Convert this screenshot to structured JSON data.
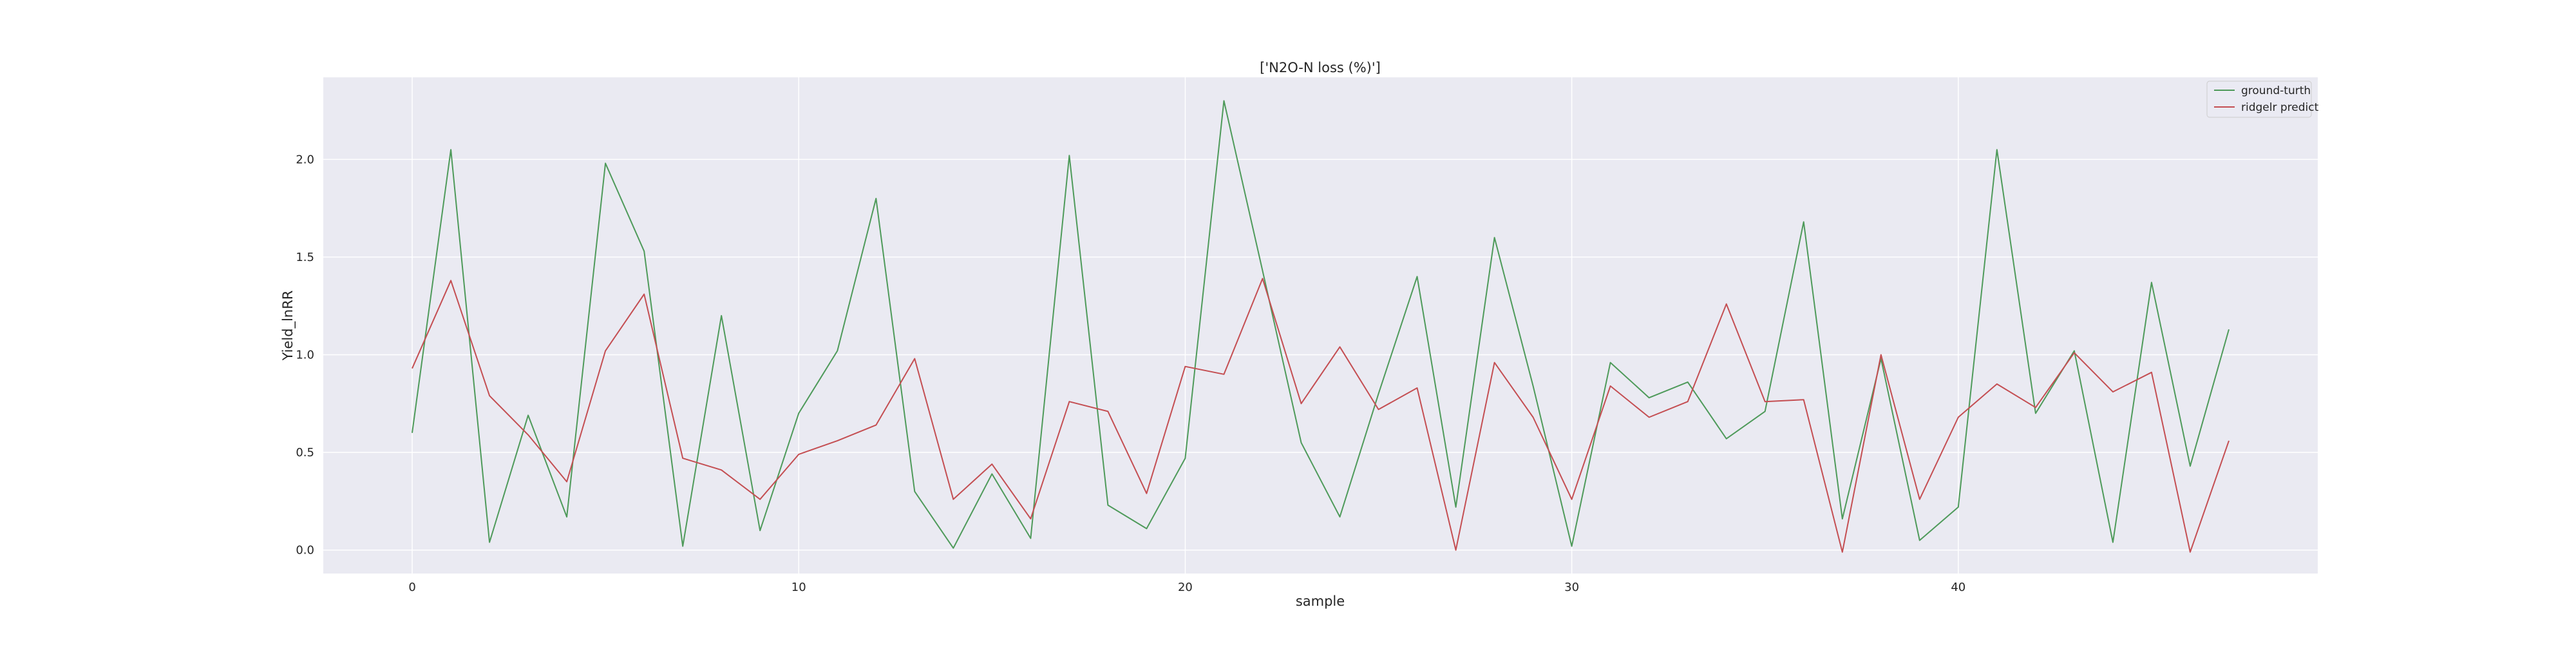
{
  "chart_data": {
    "type": "line",
    "title": "['N2O-N loss (%)']",
    "xlabel": "sample",
    "ylabel": "Yield_lnRR",
    "xlim": [
      -2.3,
      49.3
    ],
    "ylim": [
      -0.12,
      2.42
    ],
    "xticks": [
      0,
      10,
      20,
      30,
      40
    ],
    "yticks": [
      0.0,
      0.5,
      1.0,
      1.5,
      2.0
    ],
    "xtick_labels": [
      "0",
      "10",
      "20",
      "30",
      "40"
    ],
    "ytick_labels": [
      "0.0",
      "0.5",
      "1.0",
      "1.5",
      "2.0"
    ],
    "grid": true,
    "legend_position": "top-right",
    "x": [
      0,
      1,
      2,
      3,
      4,
      5,
      6,
      7,
      8,
      9,
      10,
      11,
      12,
      13,
      14,
      15,
      16,
      17,
      18,
      19,
      20,
      21,
      22,
      23,
      24,
      25,
      26,
      27,
      28,
      29,
      30,
      31,
      32,
      33,
      34,
      35,
      36,
      37,
      38,
      39,
      40,
      41,
      42,
      43,
      44,
      45,
      46,
      47
    ],
    "series": [
      {
        "name": "ground-turth",
        "color": "#4e9a5a",
        "values": [
          0.6,
          2.05,
          0.04,
          0.69,
          0.17,
          1.98,
          1.53,
          0.02,
          1.2,
          0.1,
          0.7,
          1.02,
          1.8,
          0.3,
          0.01,
          0.39,
          0.06,
          2.02,
          0.23,
          0.11,
          0.47,
          2.3,
          1.43,
          0.55,
          0.17,
          0.8,
          1.4,
          0.22,
          1.6,
          0.84,
          0.02,
          0.96,
          0.78,
          0.86,
          0.57,
          0.71,
          1.68,
          0.16,
          0.98,
          0.05,
          0.22,
          2.05,
          0.7,
          1.02,
          0.04,
          1.37,
          0.43,
          1.13
        ]
      },
      {
        "name": "ridgelr predict",
        "color": "#c44e52",
        "values": [
          0.93,
          1.38,
          0.79,
          0.59,
          0.35,
          1.02,
          1.31,
          0.47,
          0.41,
          0.26,
          0.49,
          0.56,
          0.64,
          0.98,
          0.26,
          0.44,
          0.16,
          0.76,
          0.71,
          0.29,
          0.94,
          0.9,
          1.39,
          0.75,
          1.04,
          0.72,
          0.83,
          0.0,
          0.96,
          0.68,
          0.26,
          0.84,
          0.68,
          0.76,
          1.26,
          0.76,
          0.77,
          -0.01,
          1.0,
          0.26,
          0.68,
          0.85,
          0.73,
          1.01,
          0.81,
          0.91,
          -0.01,
          0.56
        ]
      }
    ]
  }
}
